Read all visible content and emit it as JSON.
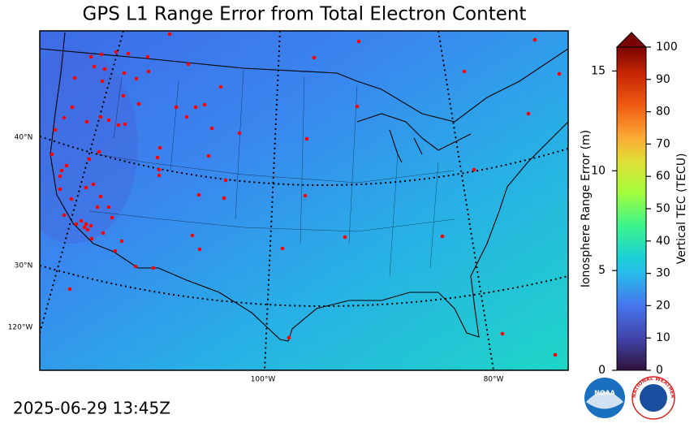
{
  "title": "GPS L1 Range Error from Total Electron Content",
  "timestamp": "2025-06-29 13:45Z",
  "map": {
    "lat_labels": [
      "40°N",
      "30°N"
    ],
    "lon_labels": [
      "120°W",
      "100°W",
      "80°W"
    ]
  },
  "colorbar": {
    "left_label": "Ionosphere Range Error (m)",
    "left_lim": [
      0,
      16.2
    ],
    "left_ticks": [
      0,
      5,
      10,
      15
    ],
    "right_label": "Vertical TEC (TECU)",
    "right_lim": [
      0,
      100
    ],
    "right_ticks": [
      0,
      10,
      20,
      30,
      40,
      50,
      60,
      70,
      80,
      90,
      100
    ]
  },
  "logos": {
    "noaa": "NOAA",
    "nws": "NATIONAL WEATHER SERVICE"
  }
}
